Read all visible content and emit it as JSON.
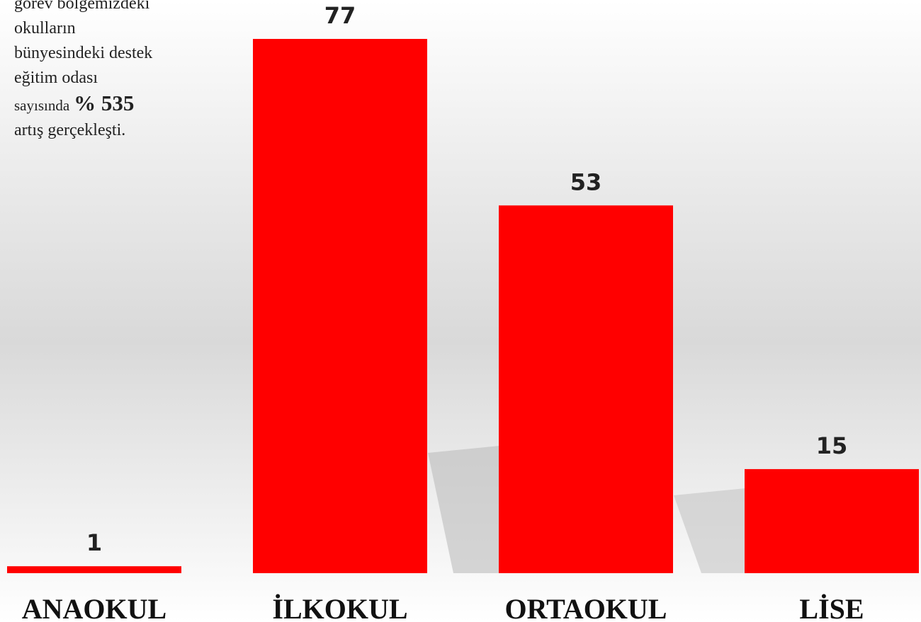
{
  "chart_data": {
    "type": "bar",
    "categories": [
      "ANAOKUL",
      "İLKOKUL",
      "ORTAOKUL",
      "LİSE"
    ],
    "values": [
      1,
      77,
      53,
      15
    ],
    "color": "#ff0000",
    "annotation": {
      "lines": [
        "görev bölgemizdeki",
        "okulların",
        "bünyesindeki destek",
        "eğitim odası"
      ],
      "lead": "sayısında",
      "highlight": "% 535",
      "tail": "artış gerçekleşti."
    }
  }
}
